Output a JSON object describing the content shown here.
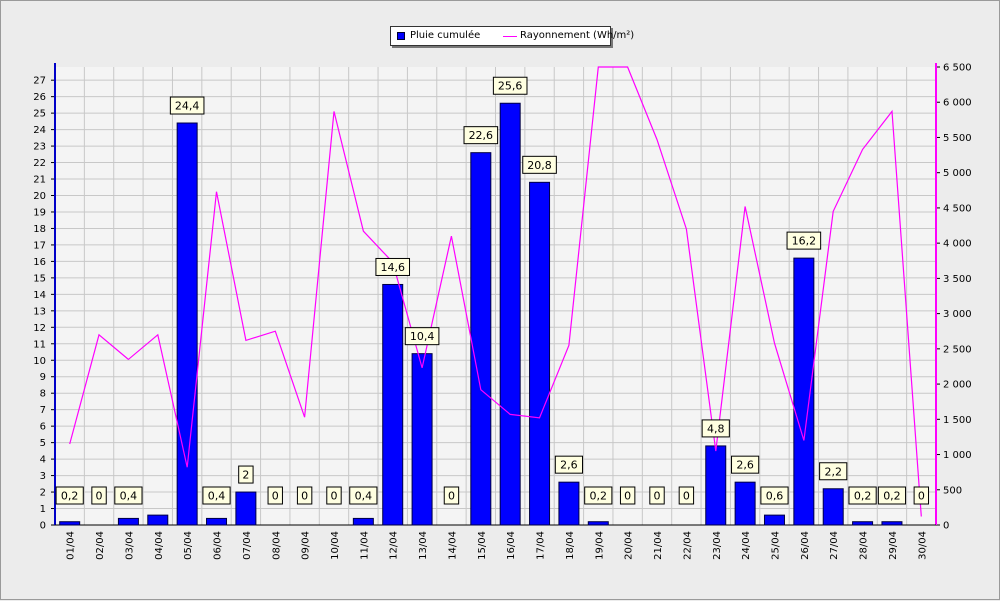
{
  "legend": {
    "bar_label": "Pluie cumulée",
    "line_label": "Rayonnement (Wh/m²)"
  },
  "colors": {
    "bar": "#0000ff",
    "line": "#ff00ff",
    "plot_background": "#f4f4f4",
    "grid": "#c8c8c8",
    "label_box": "#ffffe1"
  },
  "chart_data": {
    "type": "bar",
    "title": "",
    "xlabel": "",
    "ylabel": "",
    "grid": true,
    "legend_position": "top-center",
    "categories": [
      "01/04",
      "02/04",
      "03/04",
      "04/04",
      "05/04",
      "06/04",
      "07/04",
      "08/04",
      "09/04",
      "10/04",
      "11/04",
      "12/04",
      "13/04",
      "14/04",
      "15/04",
      "16/04",
      "17/04",
      "18/04",
      "19/04",
      "20/04",
      "21/04",
      "22/04",
      "23/04",
      "24/04",
      "25/04",
      "26/04",
      "27/04",
      "28/04",
      "29/04",
      "30/04"
    ],
    "ylim": [
      0,
      27.8
    ],
    "yticks": [
      0,
      1,
      2,
      3,
      4,
      5,
      6,
      7,
      8,
      9,
      10,
      11,
      12,
      13,
      14,
      15,
      16,
      17,
      18,
      19,
      20,
      21,
      22,
      23,
      24,
      25,
      26,
      27
    ],
    "y2lim": [
      0,
      6500
    ],
    "y2ticks": [
      0,
      500,
      1000,
      1500,
      2000,
      2500,
      3000,
      3500,
      4000,
      4500,
      5000,
      5500,
      6000,
      6500
    ],
    "series": [
      {
        "name": "Pluie cumulée",
        "type": "bar",
        "axis": "left",
        "values": [
          0.2,
          0,
          0.4,
          0.6,
          24.4,
          0.4,
          2,
          0,
          0,
          0,
          0.4,
          14.6,
          10.4,
          0,
          22.6,
          25.6,
          20.8,
          2.6,
          0.2,
          0,
          0,
          0,
          4.8,
          2.6,
          0.6,
          16.2,
          2.2,
          0.2,
          0.2,
          0
        ],
        "labels": [
          "0,2",
          "0",
          "0,4",
          "",
          "24,4",
          "0,4",
          "2",
          "0",
          "0",
          "0",
          "0,4",
          "14,6",
          "10,4",
          "0",
          "22,6",
          "25,6",
          "20,8",
          "2,6",
          "0,2",
          "0",
          "0",
          "0",
          "4,8",
          "2,6",
          "0,6",
          "16,2",
          "2,2",
          "0,2",
          "0,2",
          "0"
        ]
      },
      {
        "name": "Rayonnement (Wh/m²)",
        "type": "line",
        "axis": "right",
        "values": [
          1150,
          2700,
          2350,
          2700,
          820,
          4730,
          2620,
          2750,
          1530,
          5870,
          4170,
          3730,
          2230,
          4100,
          1920,
          1570,
          1520,
          2550,
          6500,
          6550,
          5470,
          4200,
          1050,
          4520,
          2580,
          1200,
          4450,
          5330,
          5870,
          120
        ]
      }
    ]
  }
}
